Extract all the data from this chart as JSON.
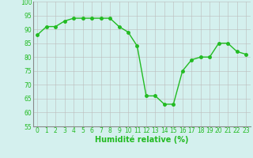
{
  "x": [
    0,
    1,
    2,
    3,
    4,
    5,
    6,
    7,
    8,
    9,
    10,
    11,
    12,
    13,
    14,
    15,
    16,
    17,
    18,
    19,
    20,
    21,
    22,
    23
  ],
  "y": [
    88,
    91,
    91,
    93,
    94,
    94,
    94,
    94,
    94,
    91,
    89,
    84,
    66,
    66,
    63,
    63,
    75,
    79,
    80,
    80,
    85,
    85,
    82,
    81
  ],
  "line_color": "#22bb22",
  "marker": "o",
  "marker_size": 2.5,
  "bg_color": "#d4f0ee",
  "grid_color": "#bbbbbb",
  "xlabel": "Humidité relative (%)",
  "xlabel_color": "#22bb22",
  "xlabel_fontsize": 7,
  "ylim": [
    55,
    100
  ],
  "yticks": [
    55,
    60,
    65,
    70,
    75,
    80,
    85,
    90,
    95,
    100
  ],
  "xticks": [
    0,
    1,
    2,
    3,
    4,
    5,
    6,
    7,
    8,
    9,
    10,
    11,
    12,
    13,
    14,
    15,
    16,
    17,
    18,
    19,
    20,
    21,
    22,
    23
  ],
  "tick_fontsize": 5.5,
  "linewidth": 1.0
}
